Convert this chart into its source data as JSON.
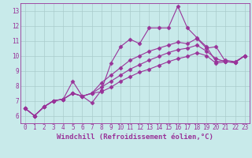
{
  "xlabel": "Windchill (Refroidissement éolien,°C)",
  "xlim": [
    -0.5,
    23.5
  ],
  "ylim": [
    5.5,
    13.5
  ],
  "xticks": [
    0,
    1,
    2,
    3,
    4,
    5,
    6,
    7,
    8,
    9,
    10,
    11,
    12,
    13,
    14,
    15,
    16,
    17,
    18,
    19,
    20,
    21,
    22,
    23
  ],
  "yticks": [
    6,
    7,
    8,
    9,
    10,
    11,
    12,
    13
  ],
  "bg_color": "#c8eaea",
  "line_color": "#993399",
  "grid_color": "#aacccc",
  "lines": [
    [
      6.5,
      6.0,
      6.6,
      7.0,
      7.1,
      8.3,
      7.3,
      6.85,
      7.7,
      9.5,
      10.6,
      11.1,
      10.8,
      11.85,
      11.85,
      11.85,
      13.3,
      11.85,
      11.2,
      10.6,
      9.6,
      9.7,
      9.6,
      10.0
    ],
    [
      6.5,
      6.0,
      6.6,
      7.0,
      7.1,
      7.5,
      7.3,
      7.5,
      8.2,
      8.7,
      9.2,
      9.7,
      10.0,
      10.3,
      10.5,
      10.7,
      10.9,
      10.8,
      11.15,
      10.5,
      10.6,
      9.6,
      9.55,
      10.0
    ],
    [
      6.5,
      6.0,
      6.6,
      7.0,
      7.1,
      7.5,
      7.3,
      7.5,
      7.9,
      8.3,
      8.7,
      9.1,
      9.4,
      9.7,
      9.95,
      10.2,
      10.4,
      10.5,
      10.7,
      10.3,
      9.8,
      9.6,
      9.55,
      10.0
    ],
    [
      6.5,
      6.0,
      6.6,
      7.0,
      7.1,
      7.5,
      7.3,
      7.5,
      7.6,
      7.9,
      8.3,
      8.6,
      8.9,
      9.1,
      9.35,
      9.6,
      9.8,
      9.95,
      10.2,
      10.0,
      9.5,
      9.6,
      9.55,
      10.0
    ]
  ],
  "marker": "D",
  "markersize": 2.5,
  "linewidth": 0.8,
  "font_color": "#993399",
  "tick_fontsize": 5.5,
  "xlabel_fontsize": 6.5
}
